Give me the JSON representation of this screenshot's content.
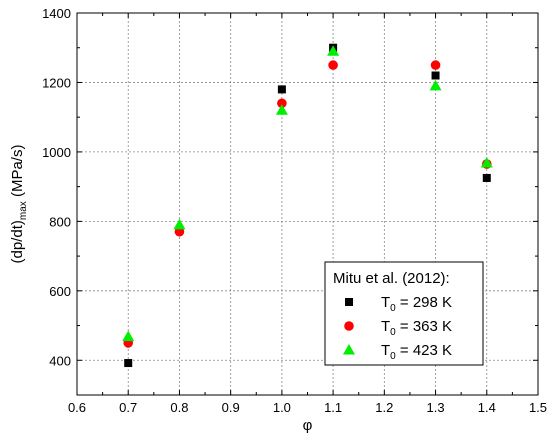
{
  "chart_data": {
    "type": "scatter",
    "xlabel": "φ",
    "ylabel": {
      "main": "(dp/dt)",
      "subscript": "max",
      "unit": " (MPa/s)"
    },
    "xlim": [
      0.6,
      1.5
    ],
    "ylim": [
      300,
      1400
    ],
    "xticks": [
      "0.6",
      "0.7",
      "0.8",
      "0.9",
      "1.0",
      "1.1",
      "1.2",
      "1.3",
      "1.4",
      "1.5"
    ],
    "yticks": [
      "400",
      "600",
      "800",
      "1000",
      "1200",
      "1400"
    ],
    "grid": true,
    "legend": {
      "placement": "bottom-right",
      "title": "Mitu et al. (2012):"
    },
    "series": [
      {
        "label": {
          "main": "T",
          "subscript": "0",
          "rest": " = 298 K"
        },
        "marker": "square",
        "color": "#000000",
        "points": [
          [
            0.7,
            392
          ],
          [
            1.0,
            1180
          ],
          [
            1.1,
            1300
          ],
          [
            1.3,
            1220
          ],
          [
            1.4,
            925
          ]
        ]
      },
      {
        "label": {
          "main": "T",
          "subscript": "0",
          "rest": " = 363 K"
        },
        "marker": "circle",
        "color": "#ff0000",
        "points": [
          [
            0.7,
            450
          ],
          [
            0.8,
            770
          ],
          [
            1.0,
            1140
          ],
          [
            1.1,
            1250
          ],
          [
            1.3,
            1250
          ],
          [
            1.4,
            965
          ]
        ]
      },
      {
        "label": {
          "main": "T",
          "subscript": "0",
          "rest": " = 423 K"
        },
        "marker": "triangle",
        "color": "#00ee00",
        "points": [
          [
            0.7,
            468
          ],
          [
            0.8,
            790
          ],
          [
            1.0,
            1120
          ],
          [
            1.1,
            1290
          ],
          [
            1.3,
            1190
          ],
          [
            1.4,
            968
          ]
        ]
      }
    ]
  }
}
